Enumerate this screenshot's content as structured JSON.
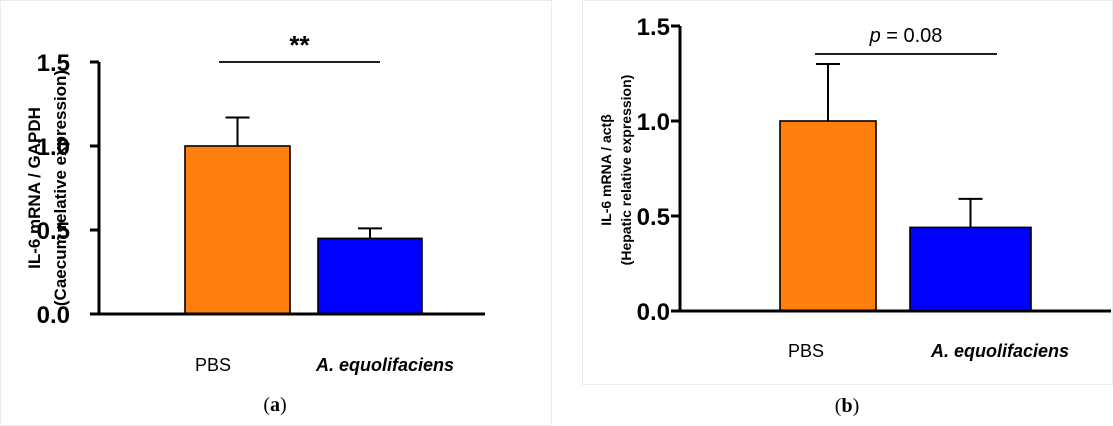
{
  "chart_data": [
    {
      "type": "bar",
      "caption_prefix": "(",
      "caption_letter": "a",
      "caption_suffix": ")",
      "ylabel_line1": "IL-6 mRNA / GAPDH",
      "ylabel_line2": "(Caecum relative expression)",
      "categories": [
        "PBS",
        "A. equolifaciens"
      ],
      "category_italic": [
        false,
        true
      ],
      "values": [
        1.0,
        0.45
      ],
      "errors": [
        0.17,
        0.06
      ],
      "colors": [
        "#ff7f0e",
        "#0000ff"
      ],
      "ylim": [
        0,
        1.5
      ],
      "yticks": [
        "0.0",
        "0.5",
        "1.0",
        "1.5"
      ],
      "annotation": {
        "text": "**",
        "italic_part": "",
        "rest": ""
      }
    },
    {
      "type": "bar",
      "caption_prefix": "(",
      "caption_letter": "b",
      "caption_suffix": ")",
      "ylabel_line1": "IL-6 mRNA / actβ",
      "ylabel_line2": "(Hepatic relative expression)",
      "categories": [
        "PBS",
        "A. equolifaciens"
      ],
      "category_italic": [
        false,
        true
      ],
      "values": [
        1.0,
        0.44
      ],
      "errors": [
        0.3,
        0.15
      ],
      "colors": [
        "#ff7f0e",
        "#0000ff"
      ],
      "ylim": [
        0,
        1.5
      ],
      "yticks": [
        "0.0",
        "0.5",
        "1.0",
        "1.5"
      ],
      "annotation": {
        "text": "",
        "italic_part": "p",
        "rest": " = 0.08"
      }
    }
  ]
}
